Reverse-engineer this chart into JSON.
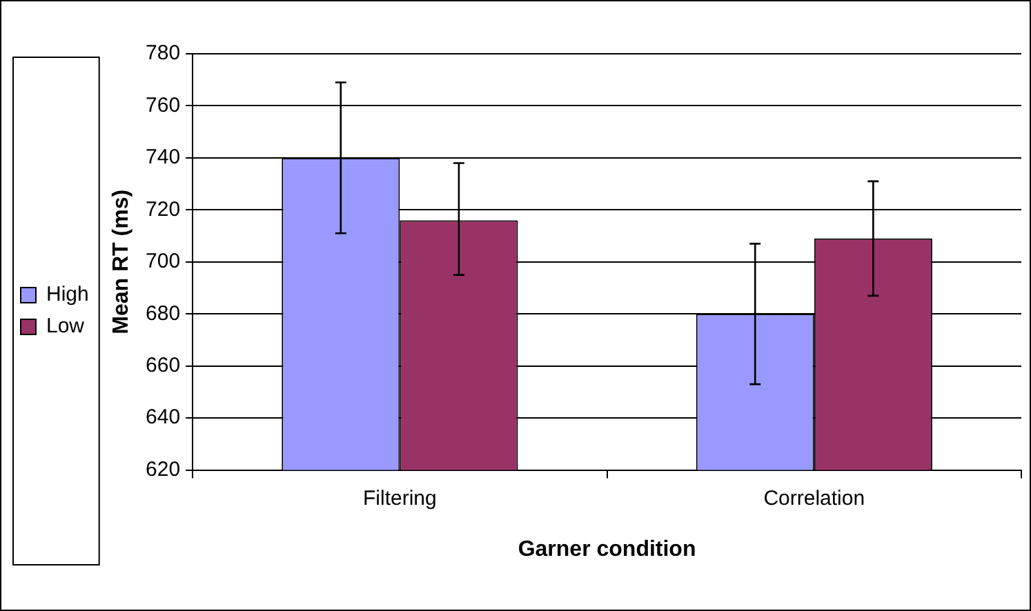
{
  "chart_data": {
    "type": "bar",
    "xlabel": "Garner condition",
    "ylabel": "Mean RT (ms)",
    "categories": [
      "Filtering",
      "Correlation"
    ],
    "series": [
      {
        "name": "High",
        "color": "#9999ff",
        "values": [
          740,
          680
        ],
        "errors": [
          [
            711,
            769
          ],
          [
            653,
            707
          ]
        ]
      },
      {
        "name": "Low",
        "color": "#993366",
        "values": [
          716,
          709
        ],
        "errors": [
          [
            695,
            738
          ],
          [
            687,
            731
          ]
        ]
      }
    ],
    "ylim": [
      620,
      780
    ],
    "yticks": [
      620,
      640,
      660,
      680,
      700,
      720,
      740,
      760,
      780
    ],
    "grid": "y",
    "legend": "left"
  }
}
